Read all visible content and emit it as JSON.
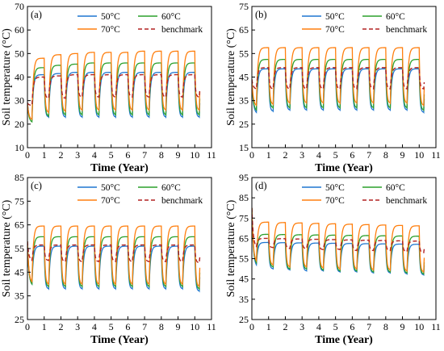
{
  "series_colors": {
    "50°C": "#1f77d0",
    "60°C": "#2ca02c",
    "70°C": "#ff7f0e",
    "benchmark": "#b22222"
  },
  "chart_data": [
    {
      "type": "line",
      "panel_label": "(a)",
      "xlabel": "Time (Year)",
      "ylabel": "Soil temperature (°C)",
      "xlim": [
        0,
        11
      ],
      "ylim": [
        10,
        70
      ],
      "xticks": [
        "0",
        "1",
        "2",
        "3",
        "4",
        "5",
        "6",
        "7",
        "8",
        "9",
        "10",
        "11"
      ],
      "yticks": [
        "10",
        "20",
        "30",
        "40",
        "50",
        "60",
        "70"
      ],
      "legend_position": "top",
      "grid": false,
      "years": 10.3,
      "series": [
        {
          "name": "50°C",
          "initial": 29,
          "cool_min": [
            22,
            23,
            23,
            23,
            23,
            23,
            23,
            23,
            23,
            23,
            23
          ],
          "heat_max": [
            41,
            41.5,
            42,
            42,
            42,
            42,
            42,
            42,
            42,
            42,
            42
          ]
        },
        {
          "name": "60°C",
          "initial": 29,
          "cool_min": [
            21,
            23.5,
            24,
            24,
            24,
            24,
            24,
            24,
            24,
            24,
            24
          ],
          "heat_max": [
            44,
            45,
            45.5,
            46,
            46,
            46,
            46,
            46,
            46,
            46,
            46
          ]
        },
        {
          "name": "70°C",
          "initial": 29,
          "cool_min": [
            22,
            25,
            25.5,
            26,
            26,
            26,
            26,
            26,
            26,
            26,
            26
          ],
          "heat_max": [
            48,
            49.5,
            50,
            50.5,
            50.5,
            50.5,
            51,
            51,
            51,
            51,
            51
          ]
        },
        {
          "name": "benchmark",
          "initial": 29,
          "cool_min": [
            28,
            31,
            31,
            31.5,
            31.5,
            31.5,
            31.5,
            31.5,
            31.5,
            31.5,
            31.5
          ],
          "heat_max": [
            40,
            40.5,
            41,
            41,
            41,
            41,
            41,
            41,
            41,
            41,
            41
          ]
        }
      ]
    },
    {
      "type": "line",
      "panel_label": "(b)",
      "xlabel": "Time (Year)",
      "ylabel": "Soil temperature (°C)",
      "xlim": [
        0,
        11
      ],
      "ylim": [
        15,
        75
      ],
      "xticks": [
        "0",
        "1",
        "2",
        "3",
        "4",
        "5",
        "6",
        "7",
        "8",
        "9",
        "10",
        "11"
      ],
      "yticks": [
        "15",
        "25",
        "35",
        "45",
        "55",
        "65",
        "75"
      ],
      "legend_position": "top",
      "grid": false,
      "years": 10.3,
      "series": [
        {
          "name": "50°C",
          "initial": 44,
          "cool_min": [
            30,
            30.5,
            31,
            31,
            31,
            31,
            31,
            31,
            31,
            31,
            30
          ]
        },
        {
          "name": "60°C",
          "initial": 44,
          "cool_min": [
            31,
            32,
            32,
            32,
            32,
            32,
            32,
            32,
            32,
            32,
            31
          ]
        },
        {
          "name": "70°C",
          "initial": 44,
          "cool_min": [
            33,
            33.5,
            34,
            34,
            34,
            34,
            34,
            34,
            34,
            34,
            33
          ]
        },
        {
          "name": "benchmark",
          "initial": 44,
          "cool_min": [
            40,
            40,
            40,
            40,
            40,
            40,
            40,
            40,
            40,
            40,
            40
          ]
        }
      ],
      "heat_max": {
        "50°C": 48.5,
        "60°C": 52.5,
        "70°C": 57.5,
        "benchmark": 49
      }
    },
    {
      "type": "line",
      "panel_label": "(c)",
      "xlabel": "Time (Year)",
      "ylabel": "Soil temperature (°C)",
      "xlim": [
        0,
        11
      ],
      "ylim": [
        25,
        85
      ],
      "xticks": [
        "0",
        "1",
        "2",
        "3",
        "4",
        "5",
        "6",
        "7",
        "8",
        "9",
        "10",
        "11"
      ],
      "yticks": [
        "25",
        "35",
        "45",
        "55",
        "65",
        "75",
        "85"
      ],
      "legend_position": "top",
      "grid": false,
      "years": 10.3,
      "series": [
        {
          "name": "50°C",
          "initial": 58,
          "cool_min": [
            40,
            38,
            38,
            38,
            38,
            38,
            38,
            38,
            38,
            38,
            37
          ]
        },
        {
          "name": "60°C",
          "initial": 58,
          "cool_min": [
            40,
            39,
            39,
            39,
            39,
            39,
            39,
            39,
            39,
            39,
            38
          ]
        },
        {
          "name": "70°C",
          "initial": 58,
          "cool_min": [
            41,
            40,
            40,
            40,
            40,
            40,
            40,
            40,
            40,
            40,
            39
          ]
        },
        {
          "name": "benchmark",
          "initial": 58,
          "cool_min": [
            50,
            50,
            49.5,
            49.5,
            49.5,
            49.5,
            49.5,
            49.5,
            49.5,
            49.5,
            49
          ]
        }
      ],
      "heat_max": {
        "50°C": 56,
        "60°C": 60,
        "70°C": 64.5,
        "benchmark": 56.5
      }
    },
    {
      "type": "line",
      "panel_label": "(d)",
      "xlabel": "Time (Year)",
      "ylabel": "Soil temperature (°C)",
      "xlim": [
        0,
        11
      ],
      "ylim": [
        25,
        95
      ],
      "xticks": [
        "0",
        "1",
        "2",
        "3",
        "4",
        "5",
        "6",
        "7",
        "8",
        "9",
        "10",
        "11"
      ],
      "yticks": [
        "25",
        "35",
        "45",
        "55",
        "65",
        "75",
        "85",
        "95"
      ],
      "legend_position": "top",
      "grid": false,
      "years": 10.3,
      "series": [
        {
          "name": "50°C",
          "initial": 80,
          "cool_min": [
            52,
            50,
            49.5,
            49,
            49,
            48.5,
            48.5,
            48,
            48,
            47.5,
            47
          ]
        },
        {
          "name": "60°C",
          "initial": 80,
          "cool_min": [
            53,
            51,
            50,
            50,
            49.5,
            49,
            49,
            48.5,
            48.5,
            48,
            47.5
          ]
        },
        {
          "name": "70°C",
          "initial": 80,
          "cool_min": [
            54,
            52,
            51,
            51,
            50.5,
            50,
            50,
            49.5,
            49.5,
            49,
            48.5
          ]
        },
        {
          "name": "benchmark",
          "initial": 80,
          "cool_min": [
            61,
            60.5,
            60,
            60,
            59.5,
            59.5,
            59,
            59,
            59,
            58.5,
            58
          ]
        }
      ],
      "heat_max_start": {
        "50°C": 63,
        "60°C": 67,
        "70°C": 73,
        "benchmark": 65
      },
      "heat_max_end": {
        "50°C": 62,
        "60°C": 66,
        "70°C": 71,
        "benchmark": 63.5
      }
    }
  ]
}
